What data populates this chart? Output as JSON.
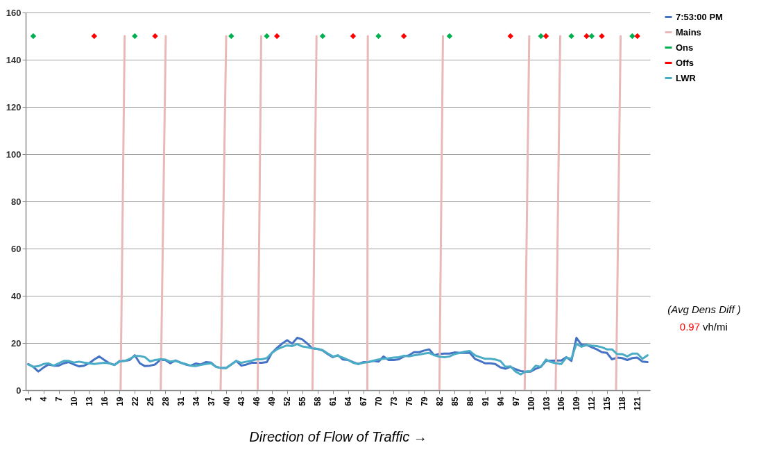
{
  "chart_data": {
    "type": "line",
    "xlabel": "Direction of Flow of Traffic →",
    "annotations": [
      "(Avg Dens Diff )",
      "0.97 vh/mi"
    ],
    "x": [
      1,
      2,
      3,
      4,
      5,
      6,
      7,
      8,
      9,
      10,
      11,
      12,
      13,
      14,
      15,
      16,
      17,
      18,
      19,
      20,
      21,
      22,
      23,
      24,
      25,
      26,
      27,
      28,
      29,
      30,
      31,
      32,
      33,
      34,
      35,
      36,
      37,
      38,
      39,
      40,
      41,
      42,
      43,
      44,
      45,
      46,
      47,
      48,
      49,
      50,
      51,
      52,
      53,
      54,
      55,
      56,
      57,
      58,
      59,
      60,
      61,
      62,
      63,
      64,
      65,
      66,
      67,
      68,
      69,
      70,
      71,
      72,
      73,
      74,
      75,
      76,
      77,
      78,
      79,
      80,
      81,
      82,
      83,
      84,
      85,
      86,
      87,
      88,
      89,
      90,
      91,
      92,
      93,
      94,
      95,
      96,
      97,
      98,
      99,
      100,
      101,
      102,
      103,
      104,
      105,
      106,
      107,
      108,
      109,
      110,
      111,
      112,
      113,
      114,
      115,
      116,
      117,
      118,
      119,
      120,
      121,
      122,
      123
    ],
    "series": [
      {
        "name": "7:53:00 PM",
        "color": "#4472c4",
        "values": [
          11.1,
          9.9,
          7.9,
          9.6,
          10.9,
          10.4,
          10.4,
          11.4,
          11.9,
          10.9,
          10.1,
          10.4,
          11.4,
          13,
          14.3,
          12.8,
          11.4,
          10.7,
          12.4,
          12.4,
          12.8,
          14.8,
          11.4,
          10.2,
          10.4,
          10.9,
          12.8,
          12.8,
          11.4,
          12.6,
          11.7,
          10.9,
          10.4,
          11.3,
          10.9,
          11.9,
          11.7,
          9.9,
          9.4,
          9.4,
          10.9,
          12.4,
          10.4,
          10.9,
          11.6,
          11.6,
          11.6,
          11.9,
          15.8,
          17.9,
          19.7,
          21.2,
          19.7,
          22.2,
          21.5,
          19.7,
          17.7,
          17.5,
          16.8,
          15.3,
          14,
          14.8,
          13,
          12.8,
          11.9,
          11.1,
          11.9,
          11.9,
          12.4,
          12.1,
          14.3,
          12.8,
          12.8,
          13.1,
          14.3,
          14.8,
          16.1,
          16.1,
          16.8,
          17.3,
          14.8,
          15.4,
          15.5,
          15.5,
          16,
          15.8,
          15.8,
          15.8,
          13.3,
          12.4,
          11.4,
          11.4,
          11.1,
          9.7,
          9.1,
          9.9,
          8.9,
          8.1,
          7.9,
          7.9,
          9.1,
          9.9,
          12.4,
          12.5,
          12.6,
          12.6,
          14,
          12.4,
          22.2,
          19.2,
          19.2,
          18.2,
          17.3,
          16.1,
          15.8,
          13.1,
          13.8,
          13.6,
          12.8,
          13.6,
          13.8,
          12.1,
          11.9
        ]
      },
      {
        "name": "Mains",
        "color": "#eab8b8",
        "x": [
          19.2,
          20.0,
          null,
          27.1,
          28.1,
          null,
          38.9,
          40.0,
          null,
          46.2,
          46.9,
          null,
          57.0,
          57.8,
          null,
          67.8,
          67.9,
          null,
          82.0,
          82.7,
          null,
          98.8,
          99.7,
          null,
          104.9,
          105.8,
          null,
          116.8,
          117.7
        ],
        "values": [
          0,
          150,
          null,
          0,
          150,
          null,
          0,
          150,
          null,
          0,
          150,
          null,
          0,
          150,
          null,
          0,
          150,
          null,
          0,
          150,
          null,
          0,
          150,
          null,
          0,
          150,
          null,
          0,
          150
        ]
      },
      {
        "name": "Ons",
        "color": "#00b050",
        "type": "scatter",
        "marker": "diamond",
        "x": [
          2,
          22,
          41,
          48,
          59,
          70,
          84,
          102,
          108,
          112,
          120
        ],
        "values": [
          150,
          150,
          150,
          150,
          150,
          150,
          150,
          150,
          150,
          150,
          150
        ]
      },
      {
        "name": "Offs",
        "color": "#ff0000",
        "type": "scatter",
        "marker": "diamond",
        "x": [
          14,
          26,
          50,
          65,
          75,
          96,
          103,
          111,
          114,
          121
        ],
        "values": [
          150,
          150,
          150,
          150,
          150,
          150,
          150,
          150,
          150,
          150
        ]
      },
      {
        "name": "LWR",
        "color": "#4bacc6",
        "values": [
          10.9,
          9.9,
          10.2,
          11.1,
          11.4,
          10.4,
          11.4,
          12.4,
          12.4,
          11.7,
          12.1,
          11.7,
          11.4,
          11.1,
          11.4,
          11.6,
          11.4,
          10.7,
          12.1,
          12.4,
          13.3,
          14.5,
          14.5,
          14,
          12.2,
          12.8,
          13.1,
          13,
          12.1,
          12.4,
          11.7,
          11.1,
          10.4,
          10.2,
          10.7,
          11.1,
          11.4,
          9.9,
          9.4,
          9.4,
          10.9,
          12.4,
          11.6,
          12.1,
          12.5,
          13.1,
          13.1,
          13.6,
          15.8,
          17.3,
          18.2,
          19,
          18.7,
          19.5,
          18.5,
          18.2,
          17.7,
          17.5,
          17,
          15.6,
          14.3,
          14.6,
          13.8,
          12.8,
          11.6,
          11.1,
          11.6,
          11.9,
          12.5,
          13,
          13.3,
          13.5,
          13.8,
          14,
          14.6,
          14.3,
          14.8,
          15.1,
          15.5,
          15.8,
          14.8,
          14.2,
          14,
          14.3,
          15.3,
          15.8,
          16.3,
          16.6,
          14.8,
          14,
          13.3,
          13.3,
          13,
          12.4,
          9.9,
          10.1,
          7.9,
          6.7,
          7.9,
          8.1,
          10.4,
          9.9,
          13,
          11.9,
          11.4,
          11.1,
          13.8,
          13.3,
          19.7,
          18.4,
          19.2,
          18.9,
          18.7,
          18.2,
          17.3,
          17.3,
          15.3,
          15.3,
          14.3,
          15.5,
          15.5,
          13.3,
          14.8
        ]
      }
    ],
    "xlim": [
      0.5,
      123.5
    ],
    "xticks": [
      1,
      4,
      7,
      10,
      13,
      16,
      19,
      22,
      25,
      28,
      31,
      34,
      37,
      40,
      43,
      46,
      49,
      52,
      55,
      58,
      61,
      64,
      67,
      70,
      73,
      76,
      79,
      82,
      85,
      88,
      91,
      94,
      97,
      100,
      103,
      106,
      109,
      112,
      115,
      118,
      121
    ],
    "ylim": [
      0,
      160
    ],
    "yticks": [
      0,
      20,
      40,
      60,
      80,
      100,
      120,
      140,
      160
    ],
    "grid": "y",
    "legend": "right"
  }
}
